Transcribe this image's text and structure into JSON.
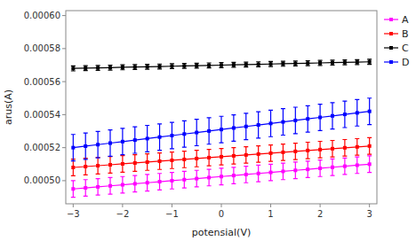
{
  "chart_data": {
    "type": "line",
    "x_label": "potensial(V)",
    "y_label": "arus(A)",
    "x": [
      -3,
      -2.75,
      -2.5,
      -2.25,
      -2,
      -1.75,
      -1.5,
      -1.25,
      -1,
      -0.75,
      -0.5,
      -0.25,
      0,
      0.25,
      0.5,
      0.75,
      1,
      1.25,
      1.5,
      1.75,
      2,
      2.25,
      2.5,
      2.75,
      3
    ],
    "series": [
      {
        "name": "A",
        "color": "#FF00FF",
        "marker": "square",
        "line_style": "solid",
        "error": 5e-06,
        "values": [
          0.000495,
          0.000495625,
          0.00049625,
          0.000496875,
          0.0004975,
          0.000498125,
          0.00049875,
          0.000499375,
          0.0005,
          0.000500625,
          0.00050125,
          0.000501875,
          0.0005025,
          0.000503125,
          0.00050375,
          0.000504375,
          0.000505,
          0.000505625,
          0.00050625,
          0.000506875,
          0.0005075,
          0.000508125,
          0.00050875,
          0.000509375,
          0.00051
        ]
      },
      {
        "name": "B",
        "color": "#FF0000",
        "marker": "square",
        "line_style": "solid",
        "error": 5e-06,
        "values": [
          0.000508,
          0.0005085416667,
          0.0005090833333,
          0.000509625,
          0.0005101666667,
          0.0005107083333,
          0.00051125,
          0.0005117916667,
          0.0005123333333,
          0.000512875,
          0.0005134166667,
          0.0005139583333,
          0.0005145,
          0.0005150416667,
          0.0005155833333,
          0.000516125,
          0.0005166666667,
          0.0005172083333,
          0.00051775,
          0.0005182916667,
          0.0005188333333,
          0.000519375,
          0.0005199166667,
          0.0005204583333,
          0.000521
        ]
      },
      {
        "name": "C",
        "color": "#000000",
        "marker": "square",
        "line_style": "solid",
        "error": 1.5e-06,
        "values": [
          0.000568,
          0.0005681666667,
          0.0005683333333,
          0.0005685,
          0.0005686666667,
          0.0005688333333,
          0.000569,
          0.0005691666667,
          0.0005693333333,
          0.0005695,
          0.0005696666667,
          0.0005698333333,
          0.00057,
          0.0005701666667,
          0.0005703333333,
          0.0005705,
          0.0005706666667,
          0.0005708333333,
          0.000571,
          0.0005711666667,
          0.0005713333333,
          0.0005715,
          0.0005716666667,
          0.0005718333333,
          0.000572
        ]
      },
      {
        "name": "D",
        "color": "#0000FF",
        "marker": "square",
        "line_style": "solid",
        "error": 8e-06,
        "values": [
          0.00052,
          0.0005209166667,
          0.0005218333333,
          0.00052275,
          0.0005236666667,
          0.0005245833333,
          0.0005255,
          0.0005264166667,
          0.0005273333333,
          0.00052825,
          0.0005291666667,
          0.0005300833333,
          0.000531,
          0.0005319166667,
          0.0005328333333,
          0.00053375,
          0.0005346666667,
          0.0005355833333,
          0.0005365,
          0.0005374166667,
          0.0005383333333,
          0.00053925,
          0.0005401666667,
          0.0005410833333,
          0.000542
        ]
      }
    ],
    "xlim": [
      -3.15,
      3.15
    ],
    "xticks": [
      {
        "value": -3,
        "label": "−3"
      },
      {
        "value": -2,
        "label": "−2"
      },
      {
        "value": -1,
        "label": "−1"
      },
      0,
      1,
      2,
      3
    ],
    "ylim": [
      0.000486,
      0.000603
    ],
    "yticks": [
      {
        "value": 0.0005,
        "label": "0.00050"
      },
      {
        "value": 0.00052,
        "label": "0.00052"
      },
      {
        "value": 0.00054,
        "label": "0.00054"
      },
      {
        "value": 0.00056,
        "label": "0.00056"
      },
      {
        "value": 0.00058,
        "label": "0.00058"
      },
      {
        "value": 0.0006,
        "label": "0.00060"
      }
    ],
    "grid": false,
    "legend": "right"
  }
}
